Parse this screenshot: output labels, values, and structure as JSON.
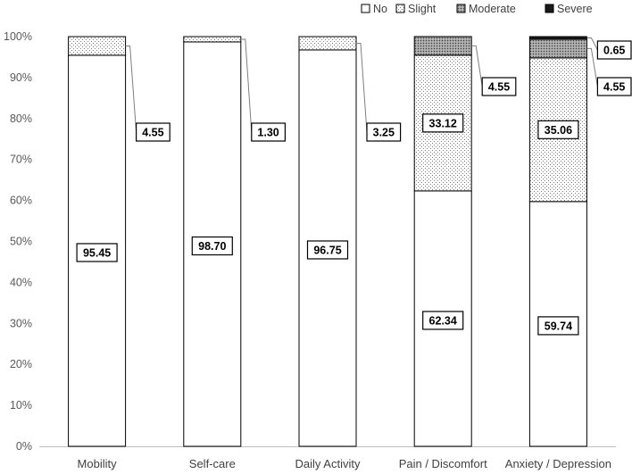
{
  "chart_data": {
    "type": "bar",
    "stacked": true,
    "percent": true,
    "categories": [
      "Mobility",
      "Self-care",
      "Daily Activity",
      "Pain / Discomfort",
      "Anxiety / Depression"
    ],
    "series": [
      {
        "name": "No",
        "values": [
          95.45,
          98.7,
          96.75,
          62.34,
          59.74
        ]
      },
      {
        "name": "Slight",
        "values": [
          4.55,
          1.3,
          3.25,
          33.12,
          35.06
        ]
      },
      {
        "name": "Moderate",
        "values": [
          0,
          0,
          0,
          4.55,
          4.55
        ]
      },
      {
        "name": "Severe",
        "values": [
          0,
          0,
          0,
          0,
          0.65
        ]
      }
    ],
    "data_labels": [
      [
        "95.45",
        "4.55",
        "",
        ""
      ],
      [
        "98.70",
        "1.30",
        "",
        ""
      ],
      [
        "96.75",
        "3.25",
        "",
        ""
      ],
      [
        "62.34",
        "33.12",
        "4.55",
        ""
      ],
      [
        "59.74",
        "35.06",
        "4.55",
        "0.65"
      ]
    ],
    "yticks": [
      "0%",
      "10%",
      "20%",
      "30%",
      "40%",
      "50%",
      "60%",
      "70%",
      "80%",
      "90%",
      "100%"
    ],
    "ylim": [
      0,
      100
    ],
    "grid": false,
    "legend": "top-right"
  }
}
